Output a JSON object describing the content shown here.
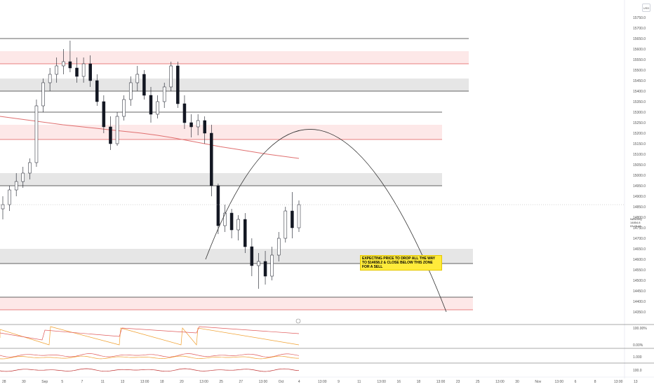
{
  "currency": "USD",
  "symbol_tag": "NASDAQ",
  "last_price_label": "14854.8",
  "countdown_label": "03:45:48",
  "annotation": "EXPECTING PRICE TO DROP ALL THE WAY TO $14658.2 & CLOSE BELOW THIS ZONE FOR A SELL",
  "price_ticks": [
    "15750.0",
    "15700.0",
    "15650.0",
    "15600.0",
    "15550.0",
    "15500.0",
    "15450.0",
    "15400.0",
    "15350.0",
    "15300.0",
    "15250.0",
    "15200.0",
    "15150.0",
    "15100.0",
    "15050.0",
    "15000.0",
    "14950.0",
    "14900.0",
    "14850.0",
    "14800.0",
    "14750.0",
    "14700.0",
    "14650.0",
    "14600.0",
    "14550.0",
    "14500.0",
    "14450.0",
    "14400.0",
    "14350.0"
  ],
  "time_ticks": [
    "28",
    "30",
    "Sep",
    "5",
    "7",
    "11",
    "13",
    "13:00",
    "18",
    "20",
    "13:00",
    "25",
    "27",
    "13:00",
    "Oct",
    "4",
    "13:00",
    "9",
    "11",
    "13:00",
    "16",
    "18",
    "13:00",
    "23",
    "25",
    "13:00",
    "30",
    "Nov",
    "13:00",
    "6",
    "8",
    "13:00",
    "13"
  ],
  "indicator_ticks": [
    "100.00%",
    "0.00%",
    "1.000",
    "100.0"
  ],
  "chart_data": {
    "type": "candlestick",
    "ylim": [
      14300,
      15800
    ],
    "candles": [
      {
        "o": 14840,
        "h": 14900,
        "l": 14790,
        "c": 14860
      },
      {
        "o": 14860,
        "h": 14950,
        "l": 14830,
        "c": 14930
      },
      {
        "o": 14930,
        "h": 15010,
        "l": 14900,
        "c": 14970
      },
      {
        "o": 14970,
        "h": 15040,
        "l": 14940,
        "c": 15010
      },
      {
        "o": 15010,
        "h": 15080,
        "l": 14980,
        "c": 15060
      },
      {
        "o": 15060,
        "h": 15360,
        "l": 15040,
        "c": 15330
      },
      {
        "o": 15330,
        "h": 15460,
        "l": 15300,
        "c": 15440
      },
      {
        "o": 15440,
        "h": 15510,
        "l": 15400,
        "c": 15480
      },
      {
        "o": 15480,
        "h": 15560,
        "l": 15440,
        "c": 15520
      },
      {
        "o": 15520,
        "h": 15600,
        "l": 15480,
        "c": 15540
      },
      {
        "o": 15540,
        "h": 15640,
        "l": 15490,
        "c": 15510
      },
      {
        "o": 15510,
        "h": 15560,
        "l": 15440,
        "c": 15470
      },
      {
        "o": 15470,
        "h": 15560,
        "l": 15440,
        "c": 15530
      },
      {
        "o": 15530,
        "h": 15570,
        "l": 15420,
        "c": 15450
      },
      {
        "o": 15450,
        "h": 15480,
        "l": 15330,
        "c": 15350
      },
      {
        "o": 15350,
        "h": 15380,
        "l": 15200,
        "c": 15230
      },
      {
        "o": 15230,
        "h": 15280,
        "l": 15120,
        "c": 15150
      },
      {
        "o": 15150,
        "h": 15300,
        "l": 15140,
        "c": 15280
      },
      {
        "o": 15280,
        "h": 15380,
        "l": 15260,
        "c": 15360
      },
      {
        "o": 15360,
        "h": 15470,
        "l": 15330,
        "c": 15440
      },
      {
        "o": 15440,
        "h": 15520,
        "l": 15400,
        "c": 15480
      },
      {
        "o": 15480,
        "h": 15500,
        "l": 15360,
        "c": 15380
      },
      {
        "o": 15380,
        "h": 15420,
        "l": 15250,
        "c": 15290
      },
      {
        "o": 15290,
        "h": 15380,
        "l": 15270,
        "c": 15350
      },
      {
        "o": 15350,
        "h": 15440,
        "l": 15320,
        "c": 15420
      },
      {
        "o": 15420,
        "h": 15540,
        "l": 15400,
        "c": 15520
      },
      {
        "o": 15520,
        "h": 15540,
        "l": 15320,
        "c": 15340
      },
      {
        "o": 15340,
        "h": 15380,
        "l": 15220,
        "c": 15250
      },
      {
        "o": 15250,
        "h": 15290,
        "l": 15180,
        "c": 15230
      },
      {
        "o": 15230,
        "h": 15290,
        "l": 15190,
        "c": 15260
      },
      {
        "o": 15260,
        "h": 15280,
        "l": 15150,
        "c": 15200
      },
      {
        "o": 15200,
        "h": 15240,
        "l": 14900,
        "c": 14950
      },
      {
        "o": 14950,
        "h": 14960,
        "l": 14720,
        "c": 14760
      },
      {
        "o": 14760,
        "h": 14860,
        "l": 14730,
        "c": 14820
      },
      {
        "o": 14820,
        "h": 14840,
        "l": 14700,
        "c": 14740
      },
      {
        "o": 14740,
        "h": 14810,
        "l": 14690,
        "c": 14790
      },
      {
        "o": 14790,
        "h": 14820,
        "l": 14630,
        "c": 14660
      },
      {
        "o": 14660,
        "h": 14700,
        "l": 14520,
        "c": 14570
      },
      {
        "o": 14570,
        "h": 14630,
        "l": 14460,
        "c": 14590
      },
      {
        "o": 14590,
        "h": 14640,
        "l": 14480,
        "c": 14520
      },
      {
        "o": 14520,
        "h": 14660,
        "l": 14500,
        "c": 14620
      },
      {
        "o": 14620,
        "h": 14730,
        "l": 14590,
        "c": 14700
      },
      {
        "o": 14700,
        "h": 14850,
        "l": 14680,
        "c": 14830
      },
      {
        "o": 14830,
        "h": 14920,
        "l": 14700,
        "c": 14750
      },
      {
        "o": 14750,
        "h": 14880,
        "l": 14730,
        "c": 14860
      }
    ],
    "moving_average": [
      15280,
      15270,
      15260,
      15250,
      15240,
      15232,
      15224,
      15216,
      15208,
      15200,
      15190,
      15178,
      15164,
      15150,
      15136,
      15124,
      15112,
      15100,
      15090,
      15080
    ],
    "zones": [
      {
        "from": 15530,
        "to": 15590,
        "color": "red"
      },
      {
        "from": 15400,
        "to": 15460,
        "color": "gray"
      },
      {
        "from": 15170,
        "to": 15240,
        "color": "red"
      },
      {
        "from": 14950,
        "to": 15010,
        "color": "gray"
      },
      {
        "from": 14580,
        "to": 14650,
        "color": "gray"
      },
      {
        "from": 14360,
        "to": 14420,
        "color": "red"
      }
    ],
    "arc": {
      "start_price": 14600,
      "peak_price": 15180,
      "end_price": 14350
    },
    "grid": false
  }
}
